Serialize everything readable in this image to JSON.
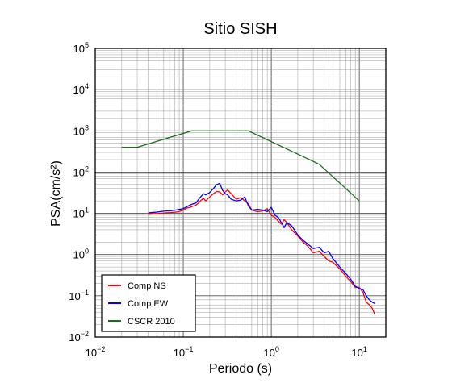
{
  "chart_data": {
    "type": "line",
    "title": "Sitio SISH",
    "xlabel": "Periodo (s)",
    "ylabel": "PSA(cm/s²)",
    "x_scale": "log",
    "y_scale": "log",
    "xlim": [
      0.01,
      20
    ],
    "ylim": [
      0.01,
      100000
    ],
    "x_ticks": [
      {
        "value": 0.01,
        "base": "10",
        "exp": "−2"
      },
      {
        "value": 0.1,
        "base": "10",
        "exp": "−1"
      },
      {
        "value": 1,
        "base": "10",
        "exp": "0"
      },
      {
        "value": 10,
        "base": "10",
        "exp": "1"
      }
    ],
    "y_ticks": [
      {
        "value": 0.01,
        "base": "10",
        "exp": "−2"
      },
      {
        "value": 0.1,
        "base": "10",
        "exp": "−1"
      },
      {
        "value": 1,
        "base": "10",
        "exp": "0"
      },
      {
        "value": 10,
        "base": "10",
        "exp": "1"
      },
      {
        "value": 100,
        "base": "10",
        "exp": "2"
      },
      {
        "value": 1000,
        "base": "10",
        "exp": "3"
      },
      {
        "value": 10000,
        "base": "10",
        "exp": "4"
      },
      {
        "value": 100000,
        "base": "10",
        "exp": "5"
      }
    ],
    "grid": true,
    "legend_position": "bottom-left",
    "series": [
      {
        "name": "Comp NS",
        "color": "#ff0000",
        "points": [
          [
            0.04,
            9.5
          ],
          [
            0.05,
            9.8
          ],
          [
            0.06,
            10.2
          ],
          [
            0.07,
            10.4
          ],
          [
            0.08,
            10.6
          ],
          [
            0.09,
            11
          ],
          [
            0.1,
            12
          ],
          [
            0.11,
            13.5
          ],
          [
            0.12,
            14
          ],
          [
            0.13,
            15
          ],
          [
            0.14,
            16
          ],
          [
            0.15,
            18
          ],
          [
            0.16,
            21
          ],
          [
            0.17,
            23
          ],
          [
            0.18,
            20
          ],
          [
            0.2,
            25
          ],
          [
            0.22,
            30
          ],
          [
            0.24,
            34
          ],
          [
            0.26,
            33
          ],
          [
            0.28,
            28
          ],
          [
            0.3,
            33
          ],
          [
            0.32,
            37
          ],
          [
            0.35,
            30
          ],
          [
            0.4,
            22
          ],
          [
            0.45,
            24
          ],
          [
            0.5,
            20
          ],
          [
            0.55,
            17
          ],
          [
            0.6,
            12
          ],
          [
            0.7,
            11
          ],
          [
            0.8,
            11.5
          ],
          [
            0.9,
            13
          ],
          [
            1.0,
            9
          ],
          [
            1.1,
            8
          ],
          [
            1.2,
            6.5
          ],
          [
            1.3,
            5.5
          ],
          [
            1.4,
            7
          ],
          [
            1.5,
            6
          ],
          [
            1.7,
            4
          ],
          [
            2.0,
            2.8
          ],
          [
            2.3,
            2
          ],
          [
            2.6,
            1.6
          ],
          [
            3.0,
            1.1
          ],
          [
            3.5,
            1.2
          ],
          [
            4.0,
            0.9
          ],
          [
            4.5,
            0.7
          ],
          [
            5.0,
            0.65
          ],
          [
            6.0,
            0.45
          ],
          [
            7.0,
            0.3
          ],
          [
            8.0,
            0.22
          ],
          [
            9.0,
            0.16
          ],
          [
            10.0,
            0.16
          ],
          [
            11.0,
            0.12
          ],
          [
            12.0,
            0.07
          ],
          [
            13.0,
            0.06
          ],
          [
            14.0,
            0.05
          ],
          [
            15.0,
            0.035
          ]
        ]
      },
      {
        "name": "Comp EW",
        "color": "#0000ff",
        "points": [
          [
            0.04,
            10.3
          ],
          [
            0.05,
            10.7
          ],
          [
            0.06,
            11.3
          ],
          [
            0.07,
            11.5
          ],
          [
            0.08,
            11.9
          ],
          [
            0.09,
            12.5
          ],
          [
            0.1,
            13
          ],
          [
            0.11,
            14.5
          ],
          [
            0.12,
            16
          ],
          [
            0.13,
            17
          ],
          [
            0.14,
            18
          ],
          [
            0.15,
            22
          ],
          [
            0.16,
            26
          ],
          [
            0.17,
            30
          ],
          [
            0.18,
            28
          ],
          [
            0.2,
            32
          ],
          [
            0.22,
            40
          ],
          [
            0.24,
            50
          ],
          [
            0.26,
            53
          ],
          [
            0.28,
            36
          ],
          [
            0.3,
            30
          ],
          [
            0.32,
            28
          ],
          [
            0.35,
            22
          ],
          [
            0.4,
            20
          ],
          [
            0.45,
            21
          ],
          [
            0.5,
            25
          ],
          [
            0.55,
            15
          ],
          [
            0.6,
            12
          ],
          [
            0.7,
            12.5
          ],
          [
            0.8,
            12
          ],
          [
            0.9,
            11
          ],
          [
            1.0,
            14
          ],
          [
            1.1,
            9
          ],
          [
            1.2,
            8
          ],
          [
            1.3,
            6
          ],
          [
            1.4,
            4.5
          ],
          [
            1.5,
            6
          ],
          [
            1.7,
            5
          ],
          [
            2.0,
            3
          ],
          [
            2.3,
            2.2
          ],
          [
            2.6,
            1.8
          ],
          [
            3.0,
            1.4
          ],
          [
            3.5,
            1.5
          ],
          [
            4.0,
            1.1
          ],
          [
            4.5,
            1.2
          ],
          [
            5.0,
            0.8
          ],
          [
            6.0,
            0.5
          ],
          [
            7.0,
            0.35
          ],
          [
            8.0,
            0.25
          ],
          [
            9.0,
            0.17
          ],
          [
            10.0,
            0.15
          ],
          [
            11.0,
            0.14
          ],
          [
            12.0,
            0.1
          ],
          [
            13.0,
            0.08
          ],
          [
            14.0,
            0.07
          ],
          [
            15.0,
            0.065
          ]
        ]
      },
      {
        "name": "CSCR 2010",
        "color": "#1c6b1c",
        "points": [
          [
            0.02,
            400
          ],
          [
            0.03,
            400
          ],
          [
            0.125,
            1000
          ],
          [
            0.55,
            1000
          ],
          [
            3.5,
            155
          ],
          [
            10,
            20
          ]
        ]
      }
    ]
  }
}
